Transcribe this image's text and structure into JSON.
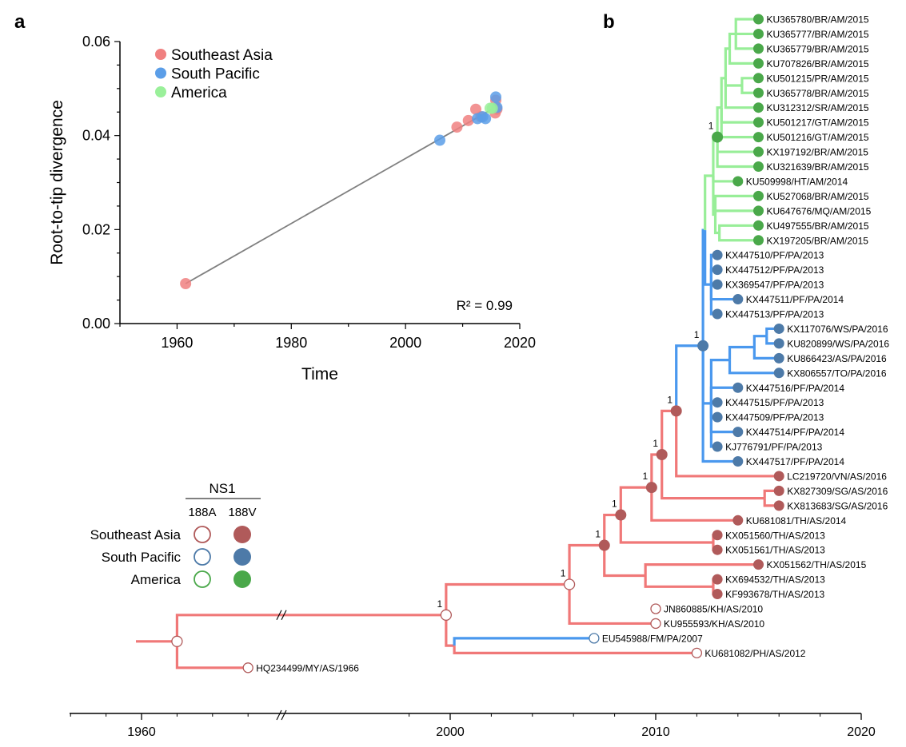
{
  "panels": {
    "a": "a",
    "b": "b"
  },
  "colors": {
    "southeast_asia": "#f08080",
    "south_pacific": "#5b9ee8",
    "america": "#9af09a",
    "sea_dark": "#b05a5a",
    "sp_dark": "#4d7aa8",
    "am_dark": "#4aa84a",
    "sea_branch": "#f07878",
    "sp_branch": "#4a98ee",
    "am_branch": "#98ee98",
    "regression": "#808080"
  },
  "chart_data": [
    {
      "type": "scatter",
      "xlabel": "Time",
      "ylabel": "Root-to-tip divergence",
      "xlim": [
        1950,
        2020
      ],
      "ylim": [
        0,
        0.06
      ],
      "xticks": [
        "1960",
        "1980",
        "2000",
        "2020"
      ],
      "yticks": [
        "0.00",
        "0.02",
        "0.04",
        "0.06"
      ],
      "annotation": "R² = 0.99",
      "legend_position": "top-left",
      "regression_line": {
        "x": [
          1961.5,
          2016
        ],
        "y": [
          0.0085,
          0.0462
        ]
      },
      "series": [
        {
          "name": "Southeast Asia",
          "color_key": "southeast_asia",
          "points": [
            [
              1961.5,
              0.0085
            ],
            [
              2009,
              0.0418
            ],
            [
              2011,
              0.0432
            ],
            [
              2012.3,
              0.0456
            ],
            [
              2013.2,
              0.044
            ],
            [
              2015.7,
              0.0448
            ],
            [
              2015.8,
              0.0475
            ],
            [
              2016,
              0.0456
            ]
          ]
        },
        {
          "name": "South Pacific",
          "color_key": "south_pacific",
          "points": [
            [
              2006,
              0.039
            ],
            [
              2012.6,
              0.0436
            ],
            [
              2013.5,
              0.044
            ],
            [
              2014,
              0.0436
            ],
            [
              2015.8,
              0.0482
            ],
            [
              2016,
              0.046
            ]
          ]
        },
        {
          "name": "America",
          "color_key": "america",
          "points": [
            [
              2014.8,
              0.0458
            ],
            [
              2015.2,
              0.0458
            ]
          ]
        }
      ]
    },
    {
      "type": "tree",
      "time_axis": {
        "ticks": [
          "1960",
          "2000",
          "2010",
          "2020"
        ]
      },
      "legend": {
        "title": "NS1",
        "columns": [
          "188A",
          "188V"
        ],
        "rows": [
          "Southeast Asia",
          "South Pacific",
          "America"
        ]
      },
      "support_label": "1",
      "tips": [
        {
          "label": "KU365780/BR/AM/2015",
          "year": 2015.0,
          "region": "am",
          "filled": true
        },
        {
          "label": "KU365777/BR/AM/2015",
          "year": 2015.0,
          "region": "am",
          "filled": true
        },
        {
          "label": "KU365779/BR/AM/2015",
          "year": 2015.0,
          "region": "am",
          "filled": true
        },
        {
          "label": "KU707826/BR/AM/2015",
          "year": 2015.0,
          "region": "am",
          "filled": true
        },
        {
          "label": "KU501215/PR/AM/2015",
          "year": 2015.0,
          "region": "am",
          "filled": true
        },
        {
          "label": "KU365778/BR/AM/2015",
          "year": 2015.0,
          "region": "am",
          "filled": true
        },
        {
          "label": "KU312312/SR/AM/2015",
          "year": 2015.0,
          "region": "am",
          "filled": true
        },
        {
          "label": "KU501217/GT/AM/2015",
          "year": 2015.0,
          "region": "am",
          "filled": true
        },
        {
          "label": "KU501216/GT/AM/2015",
          "year": 2015.0,
          "region": "am",
          "filled": true
        },
        {
          "label": "KX197192/BR/AM/2015",
          "year": 2015.0,
          "region": "am",
          "filled": true
        },
        {
          "label": "KU321639/BR/AM/2015",
          "year": 2015.0,
          "region": "am",
          "filled": true
        },
        {
          "label": "KU509998/HT/AM/2014",
          "year": 2014.0,
          "region": "am",
          "filled": true
        },
        {
          "label": "KU527068/BR/AM/2015",
          "year": 2015.0,
          "region": "am",
          "filled": true
        },
        {
          "label": "KU647676/MQ/AM/2015",
          "year": 2015.0,
          "region": "am",
          "filled": true
        },
        {
          "label": "KU497555/BR/AM/2015",
          "year": 2015.0,
          "region": "am",
          "filled": true
        },
        {
          "label": "KX197205/BR/AM/2015",
          "year": 2015.0,
          "region": "am",
          "filled": true
        },
        {
          "label": "KX447510/PF/PA/2013",
          "year": 2013.0,
          "region": "sp",
          "filled": true
        },
        {
          "label": "KX447512/PF/PA/2013",
          "year": 2013.0,
          "region": "sp",
          "filled": true
        },
        {
          "label": "KX369547/PF/PA/2013",
          "year": 2013.0,
          "region": "sp",
          "filled": true
        },
        {
          "label": "KX447511/PF/PA/2014",
          "year": 2014.0,
          "region": "sp",
          "filled": true
        },
        {
          "label": "KX447513/PF/PA/2013",
          "year": 2013.0,
          "region": "sp",
          "filled": true
        },
        {
          "label": "KX117076/WS/PA/2016",
          "year": 2016.0,
          "region": "sp",
          "filled": true
        },
        {
          "label": "KU820899/WS/PA/2016",
          "year": 2016.0,
          "region": "sp",
          "filled": true
        },
        {
          "label": "KU866423/AS/PA/2016",
          "year": 2016.0,
          "region": "sp",
          "filled": true
        },
        {
          "label": "KX806557/TO/PA/2016",
          "year": 2016.0,
          "region": "sp",
          "filled": true
        },
        {
          "label": "KX447516/PF/PA/2014",
          "year": 2014.0,
          "region": "sp",
          "filled": true
        },
        {
          "label": "KX447515/PF/PA/2013",
          "year": 2013.0,
          "region": "sp",
          "filled": true
        },
        {
          "label": "KX447509/PF/PA/2013",
          "year": 2013.0,
          "region": "sp",
          "filled": true
        },
        {
          "label": "KX447514/PF/PA/2014",
          "year": 2014.0,
          "region": "sp",
          "filled": true
        },
        {
          "label": "KJ776791/PF/PA/2013",
          "year": 2013.0,
          "region": "sp",
          "filled": true
        },
        {
          "label": "KX447517/PF/PA/2014",
          "year": 2014.0,
          "region": "sp",
          "filled": true
        },
        {
          "label": "LC219720/VN/AS/2016",
          "year": 2016.0,
          "region": "sea",
          "filled": true
        },
        {
          "label": "KX827309/SG/AS/2016",
          "year": 2016.0,
          "region": "sea",
          "filled": true
        },
        {
          "label": "KX813683/SG/AS/2016",
          "year": 2016.0,
          "region": "sea",
          "filled": true
        },
        {
          "label": "KU681081/TH/AS/2014",
          "year": 2014.0,
          "region": "sea",
          "filled": true
        },
        {
          "label": "KX051560/TH/AS/2013",
          "year": 2013.0,
          "region": "sea",
          "filled": true
        },
        {
          "label": "KX051561/TH/AS/2013",
          "year": 2013.0,
          "region": "sea",
          "filled": true
        },
        {
          "label": "KX051562/TH/AS/2015",
          "year": 2015.0,
          "region": "sea",
          "filled": true
        },
        {
          "label": "KX694532/TH/AS/2013",
          "year": 2013.0,
          "region": "sea",
          "filled": true
        },
        {
          "label": "KF993678/TH/AS/2013",
          "year": 2013.0,
          "region": "sea",
          "filled": true
        },
        {
          "label": "JN860885/KH/AS/2010",
          "year": 2010.0,
          "region": "sea",
          "filled": false
        },
        {
          "label": "KU955593/KH/AS/2010",
          "year": 2010.0,
          "region": "sea",
          "filled": false
        },
        {
          "label": "EU545988/FM/PA/2007",
          "year": 2007.0,
          "region": "sp",
          "filled": false
        },
        {
          "label": "KU681082/PH/AS/2012",
          "year": 2012.0,
          "region": "sea",
          "filled": false
        },
        {
          "label": "HQ234499/MY/AS/1966",
          "year": 1966.0,
          "region": "sea",
          "filled": false
        }
      ]
    }
  ]
}
